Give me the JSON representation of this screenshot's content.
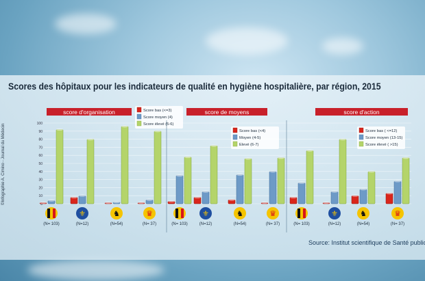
{
  "title": "Scores des hôpitaux pour les indicateurs de qualité en hygiène hospitalière, par région, 2015",
  "source": "Source: Institut scientifique de Santé publique",
  "credit": "©Infographie A. Cimino - Journal du Médecin",
  "colors": {
    "bas": "#d9261c",
    "moyen": "#6d9ac7",
    "eleve": "#b4d46a",
    "header": "#c8202a"
  },
  "chart_data": [
    {
      "type": "bar",
      "title": "score d'organisation",
      "categories": [
        "(N= 103)",
        "(N=12)",
        "(N=54)",
        "(N= 37)"
      ],
      "regions": [
        "belgique-flag-icon",
        "brussels-iris-icon",
        "flanders-lion-icon",
        "wallonia-rooster-icon"
      ],
      "series": [
        {
          "name": "Score bas (<=3)",
          "values": [
            1,
            8,
            0,
            0
          ]
        },
        {
          "name": "Score moyen (4)",
          "values": [
            4,
            10,
            2,
            5
          ]
        },
        {
          "name": "Score élevé (5-6)",
          "values": [
            92,
            80,
            96,
            90
          ]
        }
      ],
      "ylim": [
        0,
        100
      ],
      "yticks": [
        "0",
        "10",
        "20",
        "30",
        "40",
        "50",
        "60",
        "70",
        "80",
        "90",
        "100"
      ]
    },
    {
      "type": "bar",
      "title": "score de moyens",
      "categories": [
        "(N= 103)",
        "(N=12)",
        "(N=54)",
        "(N= 37)"
      ],
      "regions": [
        "belgique-flag-icon",
        "brussels-iris-icon",
        "flanders-lion-icon",
        "wallonia-rooster-icon"
      ],
      "series": [
        {
          "name": "Score bas (<4)",
          "values": [
            3,
            8,
            5,
            0
          ]
        },
        {
          "name": "Moyen (4-5)",
          "values": [
            35,
            15,
            36,
            40
          ]
        },
        {
          "name": "Elevé (6-7)",
          "values": [
            58,
            72,
            56,
            57
          ]
        }
      ],
      "ylim": [
        0,
        100
      ]
    },
    {
      "type": "bar",
      "title": "score d'action",
      "categories": [
        "(N= 103)",
        "(N=12)",
        "(N=54)",
        "(N= 37)"
      ],
      "regions": [
        "belgique-flag-icon",
        "brussels-iris-icon",
        "flanders-lion-icon",
        "wallonia-rooster-icon"
      ],
      "series": [
        {
          "name": "Score bas ( <=12)",
          "values": [
            8,
            0,
            10,
            13
          ]
        },
        {
          "name": "Score moyen (13-15)",
          "values": [
            26,
            15,
            18,
            28
          ]
        },
        {
          "name": "Score élevé ( >15)",
          "values": [
            66,
            80,
            40,
            57
          ]
        }
      ],
      "ylim": [
        0,
        100
      ]
    }
  ]
}
